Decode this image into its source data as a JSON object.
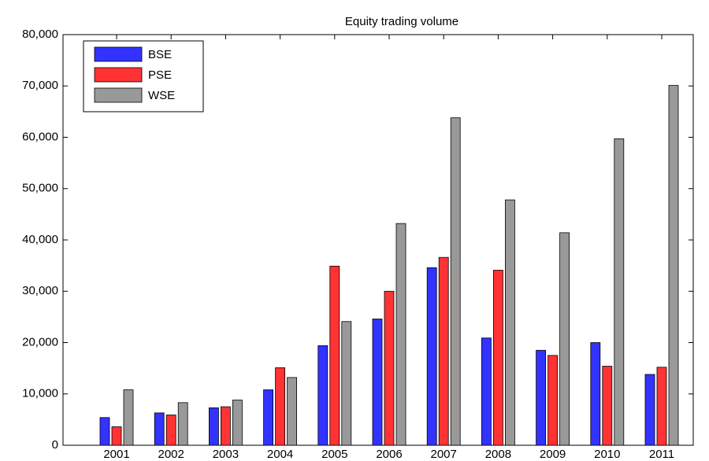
{
  "chart_data": {
    "type": "bar",
    "title": "Equity trading volume",
    "categories": [
      "2001",
      "2002",
      "2003",
      "2004",
      "2005",
      "2006",
      "2007",
      "2008",
      "2009",
      "2010",
      "2011"
    ],
    "series": [
      {
        "name": "BSE",
        "color": "#3333ff",
        "values": [
          5400,
          6300,
          7300,
          10800,
          19400,
          24600,
          34600,
          20900,
          18500,
          20000,
          13800
        ]
      },
      {
        "name": "PSE",
        "color": "#ff3333",
        "values": [
          3600,
          5900,
          7500,
          15100,
          34900,
          30000,
          36600,
          34100,
          17500,
          15400,
          15200
        ]
      },
      {
        "name": "WSE",
        "color": "#999999",
        "values": [
          10800,
          8300,
          8800,
          13200,
          24100,
          43200,
          63800,
          47800,
          41400,
          59700,
          70100
        ]
      }
    ],
    "ylim": [
      0,
      80000
    ],
    "yticks": [
      0,
      {
        "value": 10000,
        "label": "10,000"
      },
      {
        "value": 20000,
        "label": "20,000"
      },
      {
        "value": 30000,
        "label": "30,000"
      },
      {
        "value": 40000,
        "label": "40,000"
      },
      {
        "value": 50000,
        "label": "50,000"
      },
      {
        "value": 60000,
        "label": "60,000"
      },
      {
        "value": 70000,
        "label": "70,000"
      },
      {
        "value": 80000,
        "label": "80,000"
      }
    ],
    "grid": false,
    "legend": "upper-left"
  }
}
